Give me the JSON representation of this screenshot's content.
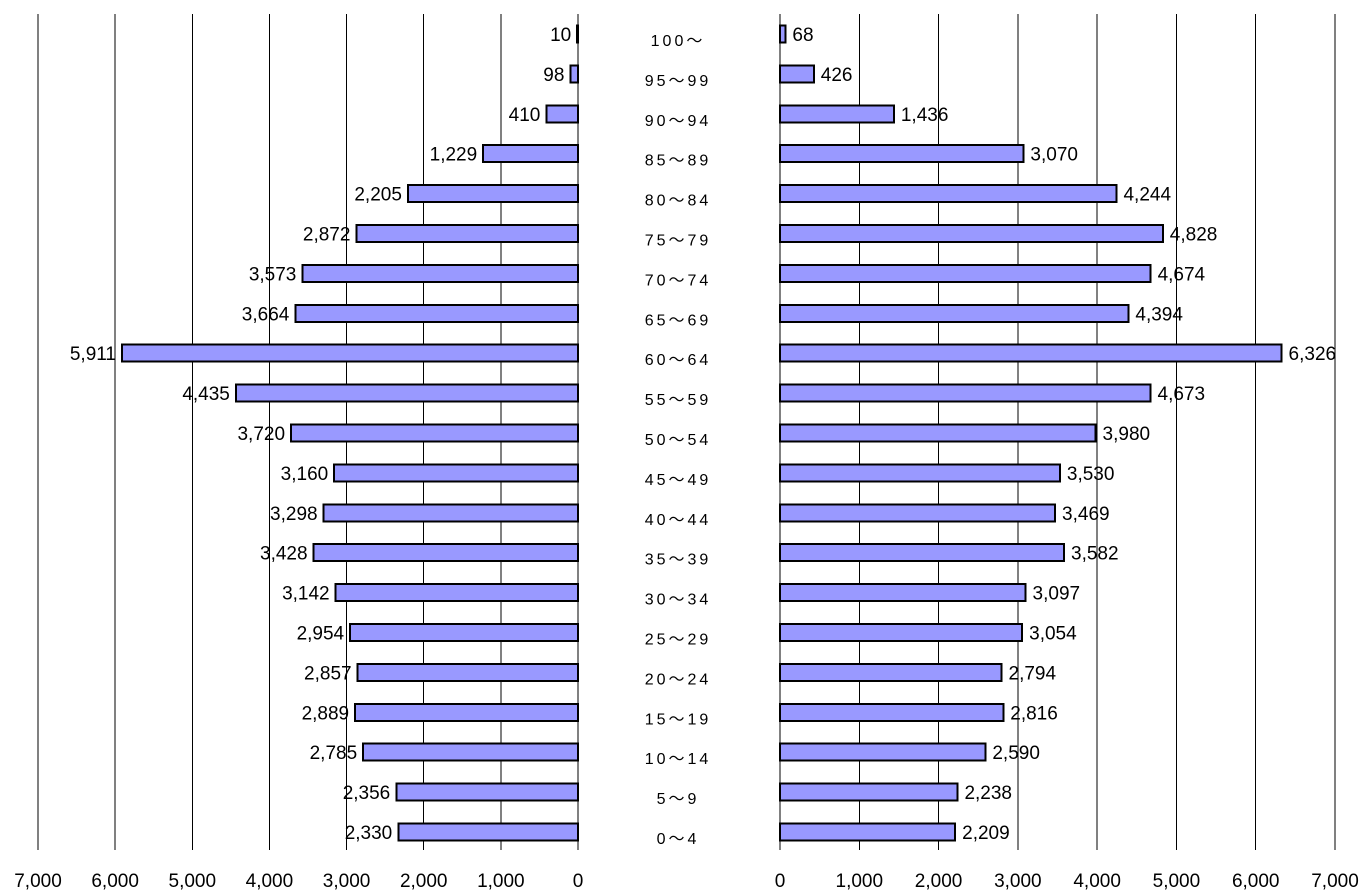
{
  "chart_data": {
    "type": "bar",
    "orientation": "horizontal",
    "layout": "population-pyramid",
    "bar_color": "#9999ff",
    "categories": [
      "100～",
      "95～99",
      "90～94",
      "85～89",
      "80～84",
      "75～79",
      "70～74",
      "65～69",
      "60～64",
      "55～59",
      "50～54",
      "45～49",
      "40～44",
      "35～39",
      "30～34",
      "25～29",
      "20～24",
      "15～19",
      "10～14",
      "5～9",
      "0～4"
    ],
    "series": [
      {
        "values": [
          10,
          98,
          410,
          1229,
          2205,
          2872,
          3573,
          3664,
          5911,
          4435,
          3720,
          3160,
          3298,
          3428,
          3142,
          2954,
          2857,
          2889,
          2785,
          2356,
          2330
        ]
      },
      {
        "values": [
          68,
          426,
          1436,
          3070,
          4244,
          4828,
          4674,
          4394,
          6326,
          4673,
          3980,
          3530,
          3469,
          3582,
          3097,
          3054,
          2794,
          2816,
          2590,
          2238,
          2209
        ]
      }
    ],
    "value_labels": [
      [
        "10",
        "98",
        "410",
        "1,229",
        "2,205",
        "2,872",
        "3,573",
        "3,664",
        "5,911",
        "4,435",
        "3,720",
        "3,160",
        "3,298",
        "3,428",
        "3,142",
        "2,954",
        "2,857",
        "2,889",
        "2,785",
        "2,356",
        "2,330"
      ],
      [
        "68",
        "426",
        "1,436",
        "3,070",
        "4,244",
        "4,828",
        "4,674",
        "4,394",
        "6,326",
        "4,673",
        "3,980",
        "3,530",
        "3,469",
        "3,582",
        "3,097",
        "3,054",
        "2,794",
        "2,816",
        "2,590",
        "2,238",
        "2,209"
      ]
    ],
    "xlim": [
      0,
      7000
    ],
    "tick_values": [
      0,
      1000,
      2000,
      3000,
      4000,
      5000,
      6000,
      7000
    ],
    "tick_labels": [
      "0",
      "1,000",
      "2,000",
      "3,000",
      "4,000",
      "5,000",
      "6,000",
      "7,000"
    ],
    "grid": true
  }
}
